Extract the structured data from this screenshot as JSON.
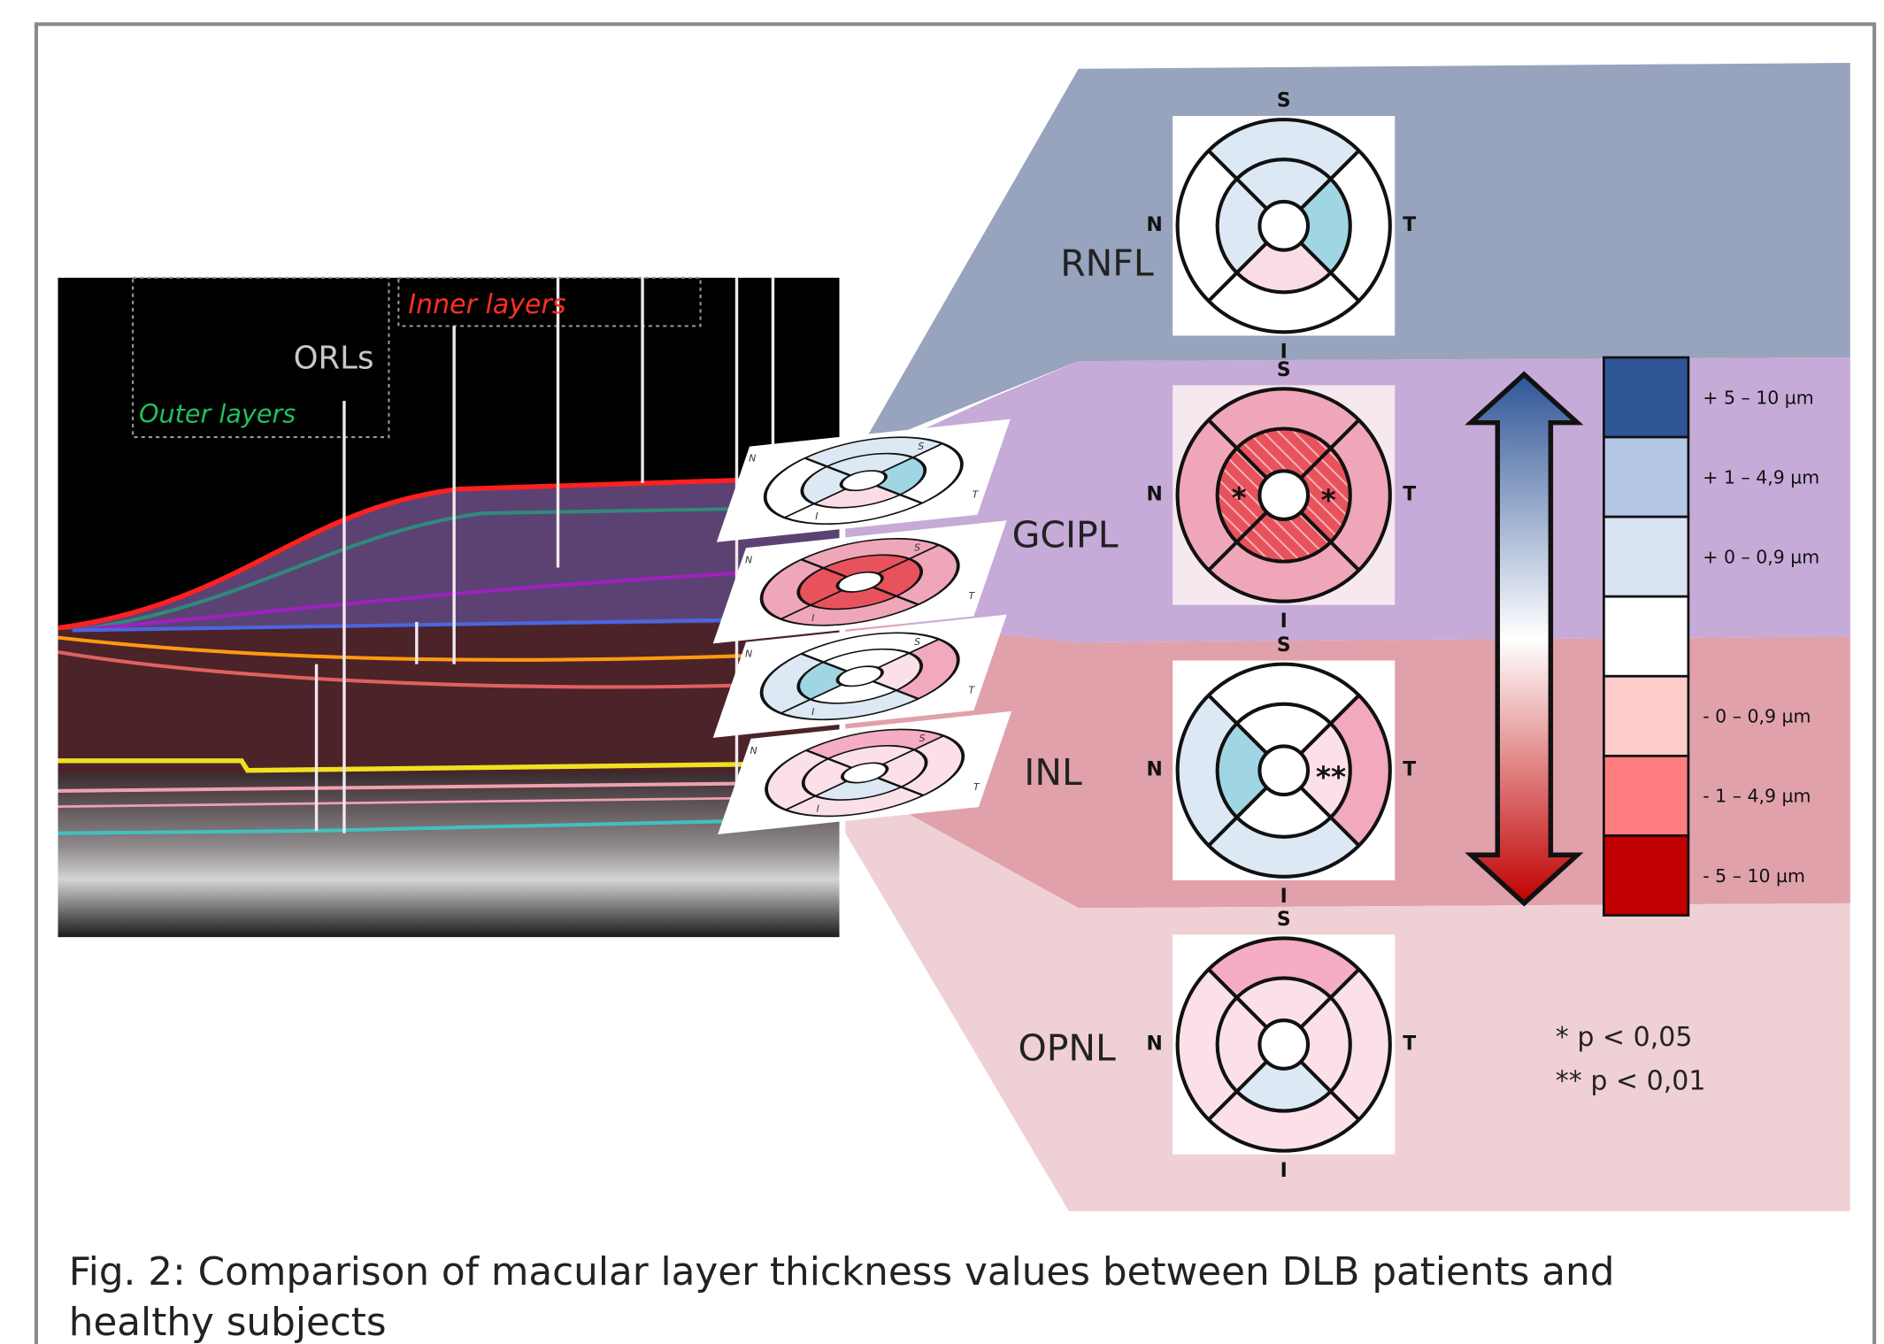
{
  "oct_image": {
    "inner_layers": "Inner layers",
    "orls": "ORLs",
    "outer_layers": "Outer layers"
  },
  "layers": [
    {
      "name": "RNFL",
      "directions": {
        "superior": "S",
        "nasal": "N",
        "temporal": "T",
        "inferior": "I"
      },
      "outer_colors": [
        "#dce9f5",
        "#ffffff",
        "#ffffff",
        "#ffffff"
      ],
      "inner_colors": [
        "#dce9f5",
        "#a0d6e4",
        "#fadde4",
        "#dce9f5"
      ],
      "background": "#ffffff",
      "marks": []
    },
    {
      "name": "GCIPL",
      "directions": {
        "superior": "S",
        "nasal": "N",
        "temporal": "T",
        "inferior": "I"
      },
      "outer_colors": [
        "#f0a6b9",
        "#f0a6b9",
        "#f0a6b9",
        "#f0a6b9"
      ],
      "inner_colors": [
        "#e8525c",
        "#e8525c",
        "#e8525c",
        "#e8525c"
      ],
      "background": "#f5e8ee",
      "marks": [
        "*",
        "*"
      ]
    },
    {
      "name": "INL",
      "directions": {
        "superior": "S",
        "nasal": "N",
        "temporal": "T",
        "inferior": "I"
      },
      "outer_colors": [
        "#ffffff",
        "#f2a8bd",
        "#dce9f5",
        "#dce9f5"
      ],
      "inner_colors": [
        "#ffffff",
        "#fbe0e7",
        "#ffffff",
        "#a0d6e4"
      ],
      "background": "#ffffff",
      "marks": [
        "**"
      ]
    },
    {
      "name": "OPNL",
      "directions": {
        "superior": "S",
        "nasal": "N",
        "temporal": "T",
        "inferior": "I"
      },
      "outer_colors": [
        "#f4adc2",
        "#fbe0e8",
        "#fbe0e8",
        "#fbe0e8"
      ],
      "inner_colors": [
        "#fbe0e8",
        "#fbe0e8",
        "#dce9f5",
        "#fbe0e8"
      ],
      "background": "#ffffff",
      "marks": []
    }
  ],
  "legend": [
    {
      "label": "+ 5 – 10 µm",
      "color": "#2f5597"
    },
    {
      "label": "+ 1 – 4,9 µm",
      "color": "#b4c7e7"
    },
    {
      "label": "+ 0 – 0,9 µm",
      "color": "#dae3f3"
    },
    {
      "label": "",
      "color": "#ffffff"
    },
    {
      "label": "- 0 – 0,9 µm",
      "color": "#ffcccc"
    },
    {
      "label": "- 1 – 4,9 µm",
      "color": "#ff7c80"
    },
    {
      "label": "- 5 – 10 µm",
      "color": "#c00000"
    }
  ],
  "notes": [
    "*  p < 0,05",
    "** p < 0,01"
  ],
  "caption": [
    "Fig. 2: Comparison of macular layer thickness values between DLB patients and",
    "healthy subjects"
  ]
}
